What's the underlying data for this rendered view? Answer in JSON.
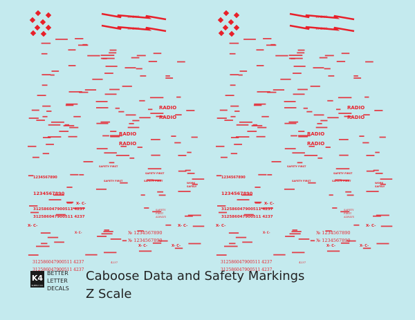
{
  "sheet": {
    "radio_banner": "RADIO",
    "radio": "RADIO",
    "serial": "1234567890",
    "car_number": "312586047900511 4237",
    "numbered": "№ 1234567890",
    "xc": "X- C-",
    "safety_first": "SAFETY FIRST",
    "safety_always": [
      "SAFETY",
      "FIRST",
      "ALWAYS"
    ],
    "work_safely": [
      "WORK",
      "SAFELY"
    ],
    "short_number": "4237"
  },
  "footer": {
    "logo": "K4",
    "logo_sub": "SUPPLY CO.",
    "brand": [
      "BETTER",
      "LETTER",
      "DECALS"
    ],
    "title": "Caboose Data and Safety Markings",
    "scale": "Z  Scale"
  }
}
